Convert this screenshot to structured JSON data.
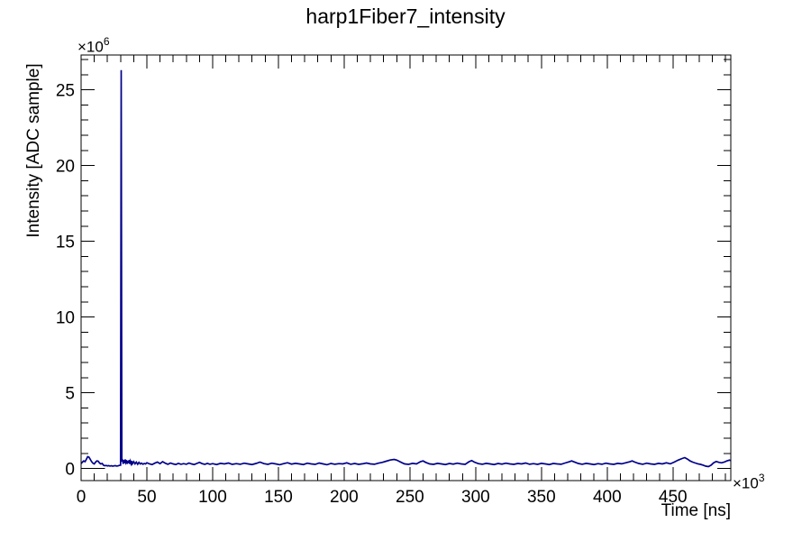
{
  "page": {
    "background": "#ffffff"
  },
  "chart": {
    "title": "harp1Fiber7_intensity",
    "x_title": "Time [ns]",
    "y_title": "Intensity [ADC sample]",
    "x_exp_base": "×10",
    "x_exp_sup": "3",
    "y_exp_base": "×10",
    "y_exp_sup": "6"
  },
  "chart_data": {
    "type": "line",
    "title": "harp1Fiber7_intensity",
    "xlabel": "Time [ns]",
    "ylabel": "Intensity [ADC sample]",
    "x_unit_multiplier": 1000,
    "y_unit_multiplier": 1000000,
    "xlim": [
      0,
      494
    ],
    "ylim": [
      -0.8,
      27.3
    ],
    "x_major_ticks": [
      0,
      50,
      100,
      150,
      200,
      250,
      300,
      350,
      400,
      450
    ],
    "x_tick_labels": [
      "0",
      "50",
      "100",
      "150",
      "200",
      "250",
      "300",
      "350",
      "400",
      "450"
    ],
    "x_minor_step": 10,
    "y_major_ticks": [
      0,
      5,
      10,
      15,
      20,
      25
    ],
    "y_tick_labels": [
      "0",
      "5",
      "10",
      "15",
      "20",
      "25"
    ],
    "y_minor_step": 1,
    "grid": false,
    "legend": "none",
    "line_color": "#00008b",
    "frame_color": "#000000",
    "spike": {
      "x": 30.5,
      "peak": 26.3
    },
    "baseline_mean": 0.3,
    "zero_line_segment": {
      "y": 0,
      "x_start": 0,
      "x_end": 18
    },
    "points": [
      [
        0,
        0.32
      ],
      [
        1,
        0.42
      ],
      [
        2,
        0.5
      ],
      [
        3,
        0.45
      ],
      [
        4,
        0.6
      ],
      [
        5,
        0.78
      ],
      [
        6,
        0.74
      ],
      [
        7,
        0.6
      ],
      [
        8,
        0.45
      ],
      [
        9,
        0.35
      ],
      [
        10,
        0.3
      ],
      [
        11,
        0.42
      ],
      [
        12,
        0.5
      ],
      [
        13,
        0.48
      ],
      [
        14,
        0.36
      ],
      [
        15,
        0.3
      ],
      [
        16,
        0.33
      ],
      [
        17,
        0.22
      ],
      [
        18,
        0.18
      ],
      [
        19,
        0.2
      ],
      [
        20,
        0.17
      ],
      [
        21,
        0.19
      ],
      [
        22,
        0.16
      ],
      [
        23,
        0.18
      ],
      [
        24,
        0.15
      ],
      [
        25,
        0.17
      ],
      [
        26,
        0.19
      ],
      [
        27,
        0.16
      ],
      [
        28,
        0.17
      ],
      [
        29,
        0.2
      ],
      [
        30,
        0.22
      ],
      [
        30.5,
        26.3
      ],
      [
        31,
        0.45
      ],
      [
        31.5,
        0.6
      ],
      [
        32,
        0.3
      ],
      [
        32.5,
        0.55
      ],
      [
        33,
        0.35
      ],
      [
        33.5,
        0.6
      ],
      [
        34,
        0.4
      ],
      [
        34.5,
        0.55
      ],
      [
        35,
        0.3
      ],
      [
        35.5,
        0.5
      ],
      [
        36,
        0.35
      ],
      [
        36.5,
        0.55
      ],
      [
        37,
        0.3
      ],
      [
        37.5,
        0.48
      ],
      [
        38,
        0.32
      ],
      [
        38.5,
        0.5
      ],
      [
        39,
        0.3
      ],
      [
        40,
        0.45
      ],
      [
        41,
        0.3
      ],
      [
        42,
        0.42
      ],
      [
        43,
        0.28
      ],
      [
        44,
        0.4
      ],
      [
        45,
        0.3
      ],
      [
        46,
        0.35
      ],
      [
        47,
        0.28
      ],
      [
        48,
        0.33
      ],
      [
        49,
        0.3
      ],
      [
        50,
        0.38
      ],
      [
        52,
        0.3
      ],
      [
        54,
        0.26
      ],
      [
        56,
        0.35
      ],
      [
        58,
        0.42
      ],
      [
        60,
        0.32
      ],
      [
        62,
        0.45
      ],
      [
        64,
        0.35
      ],
      [
        66,
        0.28
      ],
      [
        68,
        0.36
      ],
      [
        70,
        0.3
      ],
      [
        72,
        0.26
      ],
      [
        74,
        0.34
      ],
      [
        76,
        0.28
      ],
      [
        78,
        0.32
      ],
      [
        80,
        0.28
      ],
      [
        82,
        0.36
      ],
      [
        84,
        0.3
      ],
      [
        86,
        0.26
      ],
      [
        88,
        0.33
      ],
      [
        90,
        0.4
      ],
      [
        92,
        0.32
      ],
      [
        94,
        0.27
      ],
      [
        96,
        0.34
      ],
      [
        98,
        0.28
      ],
      [
        100,
        0.32
      ],
      [
        103,
        0.26
      ],
      [
        106,
        0.34
      ],
      [
        109,
        0.3
      ],
      [
        112,
        0.36
      ],
      [
        115,
        0.27
      ],
      [
        118,
        0.32
      ],
      [
        121,
        0.28
      ],
      [
        124,
        0.35
      ],
      [
        127,
        0.3
      ],
      [
        130,
        0.26
      ],
      [
        133,
        0.33
      ],
      [
        136,
        0.42
      ],
      [
        139,
        0.32
      ],
      [
        142,
        0.27
      ],
      [
        145,
        0.35
      ],
      [
        148,
        0.3
      ],
      [
        151,
        0.25
      ],
      [
        154,
        0.32
      ],
      [
        157,
        0.38
      ],
      [
        160,
        0.29
      ],
      [
        163,
        0.34
      ],
      [
        166,
        0.3
      ],
      [
        169,
        0.26
      ],
      [
        172,
        0.35
      ],
      [
        175,
        0.3
      ],
      [
        178,
        0.27
      ],
      [
        181,
        0.36
      ],
      [
        184,
        0.3
      ],
      [
        187,
        0.25
      ],
      [
        190,
        0.33
      ],
      [
        193,
        0.28
      ],
      [
        196,
        0.32
      ],
      [
        199,
        0.3
      ],
      [
        202,
        0.37
      ],
      [
        205,
        0.28
      ],
      [
        208,
        0.33
      ],
      [
        211,
        0.27
      ],
      [
        214,
        0.31
      ],
      [
        217,
        0.36
      ],
      [
        220,
        0.3
      ],
      [
        223,
        0.28
      ],
      [
        226,
        0.35
      ],
      [
        229,
        0.4
      ],
      [
        232,
        0.48
      ],
      [
        235,
        0.56
      ],
      [
        238,
        0.6
      ],
      [
        240,
        0.55
      ],
      [
        242,
        0.46
      ],
      [
        244,
        0.38
      ],
      [
        246,
        0.3
      ],
      [
        249,
        0.27
      ],
      [
        252,
        0.34
      ],
      [
        255,
        0.3
      ],
      [
        258,
        0.45
      ],
      [
        260,
        0.5
      ],
      [
        262,
        0.4
      ],
      [
        265,
        0.3
      ],
      [
        268,
        0.27
      ],
      [
        271,
        0.34
      ],
      [
        274,
        0.3
      ],
      [
        277,
        0.26
      ],
      [
        280,
        0.33
      ],
      [
        283,
        0.29
      ],
      [
        286,
        0.35
      ],
      [
        289,
        0.3
      ],
      [
        292,
        0.27
      ],
      [
        295,
        0.45
      ],
      [
        297,
        0.52
      ],
      [
        299,
        0.42
      ],
      [
        302,
        0.32
      ],
      [
        305,
        0.28
      ],
      [
        308,
        0.34
      ],
      [
        311,
        0.3
      ],
      [
        314,
        0.26
      ],
      [
        317,
        0.33
      ],
      [
        320,
        0.29
      ],
      [
        323,
        0.35
      ],
      [
        326,
        0.3
      ],
      [
        329,
        0.27
      ],
      [
        332,
        0.33
      ],
      [
        335,
        0.3
      ],
      [
        338,
        0.36
      ],
      [
        341,
        0.28
      ],
      [
        344,
        0.32
      ],
      [
        347,
        0.27
      ],
      [
        350,
        0.34
      ],
      [
        353,
        0.3
      ],
      [
        356,
        0.26
      ],
      [
        359,
        0.33
      ],
      [
        362,
        0.3
      ],
      [
        365,
        0.28
      ],
      [
        368,
        0.36
      ],
      [
        371,
        0.44
      ],
      [
        373,
        0.5
      ],
      [
        375,
        0.43
      ],
      [
        378,
        0.33
      ],
      [
        381,
        0.28
      ],
      [
        384,
        0.34
      ],
      [
        387,
        0.3
      ],
      [
        390,
        0.26
      ],
      [
        393,
        0.32
      ],
      [
        396,
        0.28
      ],
      [
        399,
        0.35
      ],
      [
        402,
        0.3
      ],
      [
        405,
        0.27
      ],
      [
        408,
        0.34
      ],
      [
        411,
        0.31
      ],
      [
        414,
        0.37
      ],
      [
        417,
        0.44
      ],
      [
        419,
        0.5
      ],
      [
        421,
        0.42
      ],
      [
        424,
        0.33
      ],
      [
        427,
        0.28
      ],
      [
        430,
        0.35
      ],
      [
        433,
        0.3
      ],
      [
        436,
        0.27
      ],
      [
        439,
        0.34
      ],
      [
        442,
        0.3
      ],
      [
        445,
        0.37
      ],
      [
        448,
        0.31
      ],
      [
        451,
        0.42
      ],
      [
        454,
        0.55
      ],
      [
        457,
        0.66
      ],
      [
        459,
        0.72
      ],
      [
        461,
        0.62
      ],
      [
        463,
        0.5
      ],
      [
        465,
        0.42
      ],
      [
        467,
        0.36
      ],
      [
        469,
        0.31
      ],
      [
        471,
        0.27
      ],
      [
        473,
        0.22
      ],
      [
        475,
        0.15
      ],
      [
        477,
        0.12
      ],
      [
        479,
        0.22
      ],
      [
        481,
        0.38
      ],
      [
        483,
        0.46
      ],
      [
        485,
        0.4
      ],
      [
        487,
        0.37
      ],
      [
        489,
        0.42
      ],
      [
        491,
        0.5
      ],
      [
        493,
        0.55
      ],
      [
        494,
        0.52
      ]
    ]
  }
}
